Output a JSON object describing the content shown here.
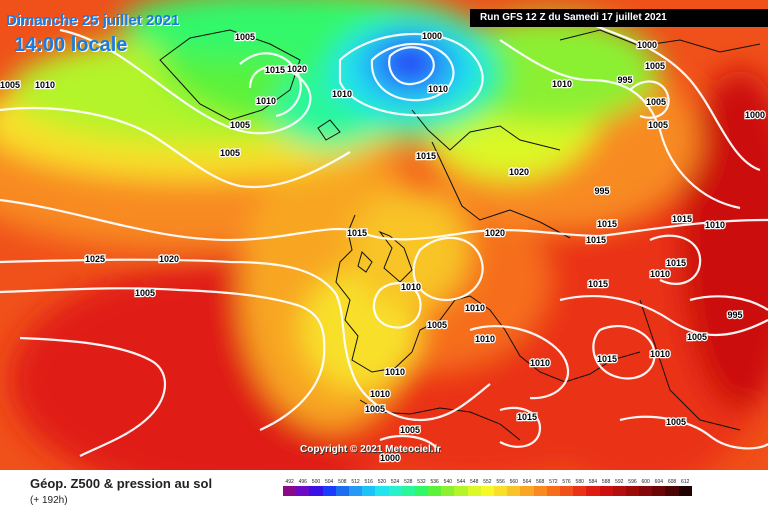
{
  "header": {
    "date_line": "Dimanche 25 juillet 2021",
    "time_line": "14:00 locale",
    "run_info": "Run GFS 12 Z du Samedi 17 juillet 2021"
  },
  "map": {
    "copyright": "Copyright © 2021 Meteociel.fr",
    "pressure_labels": [
      "1005",
      "1010",
      "1005",
      "1005",
      "1015",
      "1010",
      "1020",
      "1010",
      "1010",
      "1005",
      "1005",
      "1000",
      "1010",
      "1000",
      "995",
      "995",
      "1000",
      "1005",
      "1015",
      "1020",
      "1015",
      "1015",
      "1015",
      "1015",
      "1015",
      "1020",
      "1020",
      "1025",
      "1005",
      "1010",
      "1005",
      "1010",
      "1010",
      "1010",
      "1010",
      "1010",
      "1005",
      "1005",
      "1000",
      "1015",
      "1010",
      "1015",
      "1005",
      "1005",
      "995",
      "1010",
      "1010",
      "1015",
      "1005"
    ]
  },
  "footer": {
    "title": "Géop. Z500 & pression au sol",
    "subtitle": "(+ 192h)"
  },
  "legend": {
    "labels": [
      "492",
      "496",
      "500",
      "504",
      "508",
      "512",
      "516",
      "520",
      "524",
      "528",
      "532",
      "536",
      "540",
      "544",
      "548",
      "552",
      "556",
      "560",
      "564",
      "568",
      "572",
      "576",
      "580",
      "584",
      "588",
      "592",
      "596",
      "600",
      "604",
      "608",
      "612"
    ],
    "colors": [
      "#8a0a8a",
      "#6c0ac6",
      "#3a10e6",
      "#1a3cff",
      "#1b6ef0",
      "#2599f5",
      "#1dc3f7",
      "#22e3ee",
      "#28f2cc",
      "#2af79a",
      "#30f86a",
      "#5af23a",
      "#8cf031",
      "#b4f42c",
      "#dcf826",
      "#f6f828",
      "#f8e02a",
      "#f8c428",
      "#f8a624",
      "#f88a20",
      "#f66e1c",
      "#f0501a",
      "#ea3216",
      "#e01c12",
      "#cc1010",
      "#b40e0e",
      "#9c0a0a",
      "#840808",
      "#6a0606",
      "#4a0404",
      "#200202"
    ]
  }
}
